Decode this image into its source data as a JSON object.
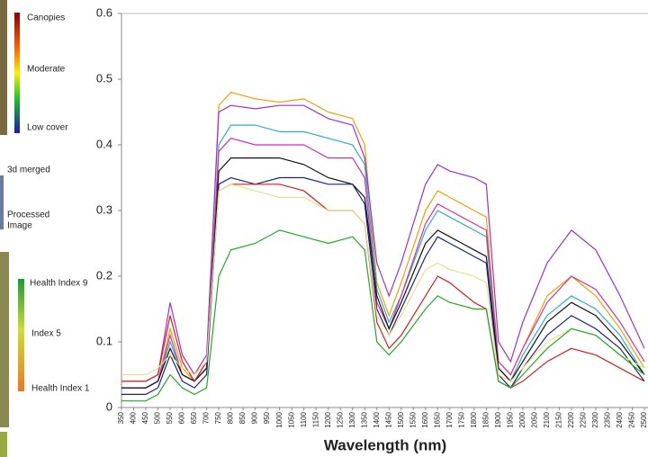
{
  "side_panel": {
    "scale_top": "Canopies",
    "scale_mid": "Moderate",
    "scale_bottom": "Low cover",
    "merged": "3d merged",
    "processed": [
      "Processed",
      "Image"
    ],
    "health_top": "Health Index 9",
    "health_mid": "Index 5",
    "health_bottom": "Health Index 1"
  },
  "chart_data": {
    "type": "line",
    "x_label": "Wavelength (nm)",
    "x": [
      350,
      450,
      500,
      550,
      600,
      650,
      700,
      750,
      800,
      900,
      1000,
      1100,
      1200,
      1300,
      1350,
      1400,
      1450,
      1500,
      1600,
      1650,
      1700,
      1800,
      1850,
      1900,
      1950,
      2000,
      2100,
      2200,
      2300,
      2400,
      2500
    ],
    "series": [
      {
        "color": "#f0a000",
        "values": [
          0.03,
          0.03,
          0.04,
          0.12,
          0.06,
          0.04,
          0.07,
          0.46,
          0.48,
          0.47,
          0.465,
          0.47,
          0.45,
          0.44,
          0.4,
          0.19,
          0.14,
          0.19,
          0.3,
          0.33,
          0.32,
          0.3,
          0.29,
          0.07,
          0.05,
          0.09,
          0.17,
          0.2,
          0.17,
          0.12,
          0.06
        ]
      },
      {
        "color": "#9933cc",
        "values": [
          0.04,
          0.04,
          0.05,
          0.16,
          0.08,
          0.05,
          0.08,
          0.45,
          0.46,
          0.455,
          0.46,
          0.46,
          0.44,
          0.43,
          0.38,
          0.22,
          0.17,
          0.22,
          0.34,
          0.37,
          0.36,
          0.35,
          0.34,
          0.1,
          0.07,
          0.13,
          0.22,
          0.27,
          0.24,
          0.17,
          0.09
        ]
      },
      {
        "color": "#33aacc",
        "values": [
          0.03,
          0.03,
          0.04,
          0.1,
          0.05,
          0.04,
          0.06,
          0.4,
          0.43,
          0.43,
          0.42,
          0.42,
          0.41,
          0.4,
          0.37,
          0.18,
          0.13,
          0.17,
          0.27,
          0.3,
          0.29,
          0.27,
          0.26,
          0.06,
          0.04,
          0.08,
          0.14,
          0.17,
          0.15,
          0.11,
          0.05
        ]
      },
      {
        "color": "#cc33aa",
        "values": [
          0.03,
          0.03,
          0.04,
          0.11,
          0.05,
          0.04,
          0.06,
          0.39,
          0.41,
          0.4,
          0.4,
          0.4,
          0.38,
          0.38,
          0.35,
          0.16,
          0.12,
          0.17,
          0.28,
          0.31,
          0.3,
          0.28,
          0.27,
          0.07,
          0.05,
          0.09,
          0.16,
          0.2,
          0.18,
          0.13,
          0.07
        ]
      },
      {
        "color": "#111111",
        "values": [
          0.03,
          0.03,
          0.04,
          0.09,
          0.05,
          0.04,
          0.06,
          0.36,
          0.38,
          0.38,
          0.38,
          0.37,
          0.35,
          0.34,
          0.32,
          0.17,
          0.12,
          0.16,
          0.25,
          0.27,
          0.26,
          0.24,
          0.23,
          0.06,
          0.04,
          0.07,
          0.13,
          0.16,
          0.14,
          0.1,
          0.05
        ]
      },
      {
        "color": "#1a237e",
        "values": [
          0.02,
          0.02,
          0.03,
          0.08,
          0.04,
          0.03,
          0.05,
          0.34,
          0.35,
          0.34,
          0.35,
          0.35,
          0.34,
          0.34,
          0.31,
          0.15,
          0.11,
          0.15,
          0.23,
          0.26,
          0.25,
          0.23,
          0.22,
          0.05,
          0.03,
          0.06,
          0.11,
          0.14,
          0.12,
          0.09,
          0.04
        ]
      },
      {
        "color": "#cc2222",
        "values": [
          0.04,
          0.04,
          0.05,
          0.14,
          0.07,
          0.04,
          0.07,
          0.33,
          0.34,
          0.34,
          0.34,
          0.33,
          0.3,
          0.3,
          0.28,
          0.13,
          0.09,
          0.11,
          0.17,
          0.2,
          0.19,
          0.16,
          0.15,
          0.04,
          0.03,
          0.04,
          0.07,
          0.09,
          0.08,
          0.06,
          0.04
        ]
      },
      {
        "color": "#e8e08a",
        "values": [
          0.05,
          0.05,
          0.06,
          0.08,
          0.06,
          0.05,
          0.07,
          0.33,
          0.34,
          0.33,
          0.32,
          0.32,
          0.3,
          0.3,
          0.28,
          0.14,
          0.11,
          0.14,
          0.21,
          0.22,
          0.21,
          0.2,
          0.19,
          0.05,
          0.04,
          0.06,
          0.1,
          0.12,
          0.11,
          0.08,
          0.06
        ]
      },
      {
        "color": "#22aa22",
        "values": [
          0.01,
          0.01,
          0.02,
          0.05,
          0.03,
          0.02,
          0.03,
          0.2,
          0.24,
          0.25,
          0.27,
          0.26,
          0.25,
          0.26,
          0.24,
          0.1,
          0.08,
          0.1,
          0.15,
          0.17,
          0.16,
          0.15,
          0.15,
          0.04,
          0.03,
          0.05,
          0.09,
          0.12,
          0.11,
          0.08,
          0.05
        ]
      }
    ],
    "xlim": [
      350,
      2500
    ],
    "xticks": [
      350,
      400,
      450,
      500,
      550,
      600,
      650,
      700,
      750,
      800,
      850,
      900,
      950,
      1000,
      1050,
      1100,
      1150,
      1200,
      1250,
      1300,
      1350,
      1400,
      1450,
      1500,
      1550,
      1600,
      1650,
      1700,
      1750,
      1800,
      1850,
      1900,
      1950,
      2000,
      2050,
      2100,
      2150,
      2200,
      2250,
      2300,
      2350,
      2400,
      2450,
      2500
    ],
    "ylim": [
      0,
      0.6
    ],
    "yticks": [
      0,
      0.1,
      0.2,
      0.3,
      0.4,
      0.5,
      0.6
    ],
    "grid": false
  }
}
